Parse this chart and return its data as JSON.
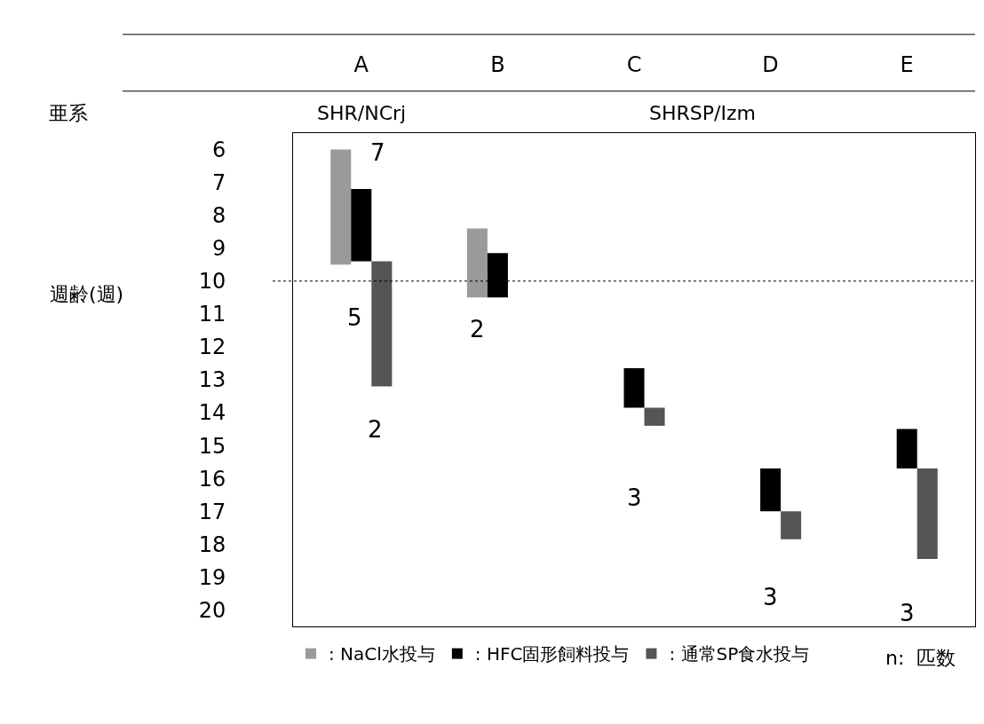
{
  "chart_data": {
    "type": "bar",
    "ylabel": "週齢(週)",
    "categories": [
      "A",
      "B",
      "C",
      "D",
      "E"
    ],
    "series": [
      {
        "name": ": NaCl水投与",
        "color": "#9a9a9a",
        "base": [
          6.0,
          8.4,
          null,
          null,
          null
        ],
        "values": [
          3.5,
          2.1,
          null,
          null,
          null
        ]
      },
      {
        "name": ": HFC固形飼料投与",
        "color": "#000000",
        "base": [
          7.2,
          9.15,
          12.65,
          15.7,
          14.5
        ],
        "values": [
          2.2,
          1.35,
          1.2,
          1.3,
          1.2
        ]
      },
      {
        "name": ": 通常SP食水投与",
        "color": "#555555",
        "base": [
          9.4,
          null,
          13.85,
          17.0,
          15.7
        ],
        "values": [
          3.8,
          null,
          0.55,
          0.85,
          2.75
        ]
      }
    ],
    "ylim": [
      20.5,
      5.5
    ],
    "yticks": [
      6,
      7,
      8,
      9,
      10,
      11,
      12,
      13,
      14,
      15,
      16,
      17,
      18,
      19,
      20
    ],
    "ref_lines": [
      {
        "axis": "y",
        "value": 10,
        "line_style": "dotted",
        "color": "#000000"
      }
    ],
    "annotations": [
      "亜系",
      "SHR/NCrj",
      "SHRSP/Izm",
      "n:  匹数",
      "7",
      "5",
      "2",
      "2",
      "3",
      "3",
      "3"
    ],
    "legend": "bottom"
  }
}
